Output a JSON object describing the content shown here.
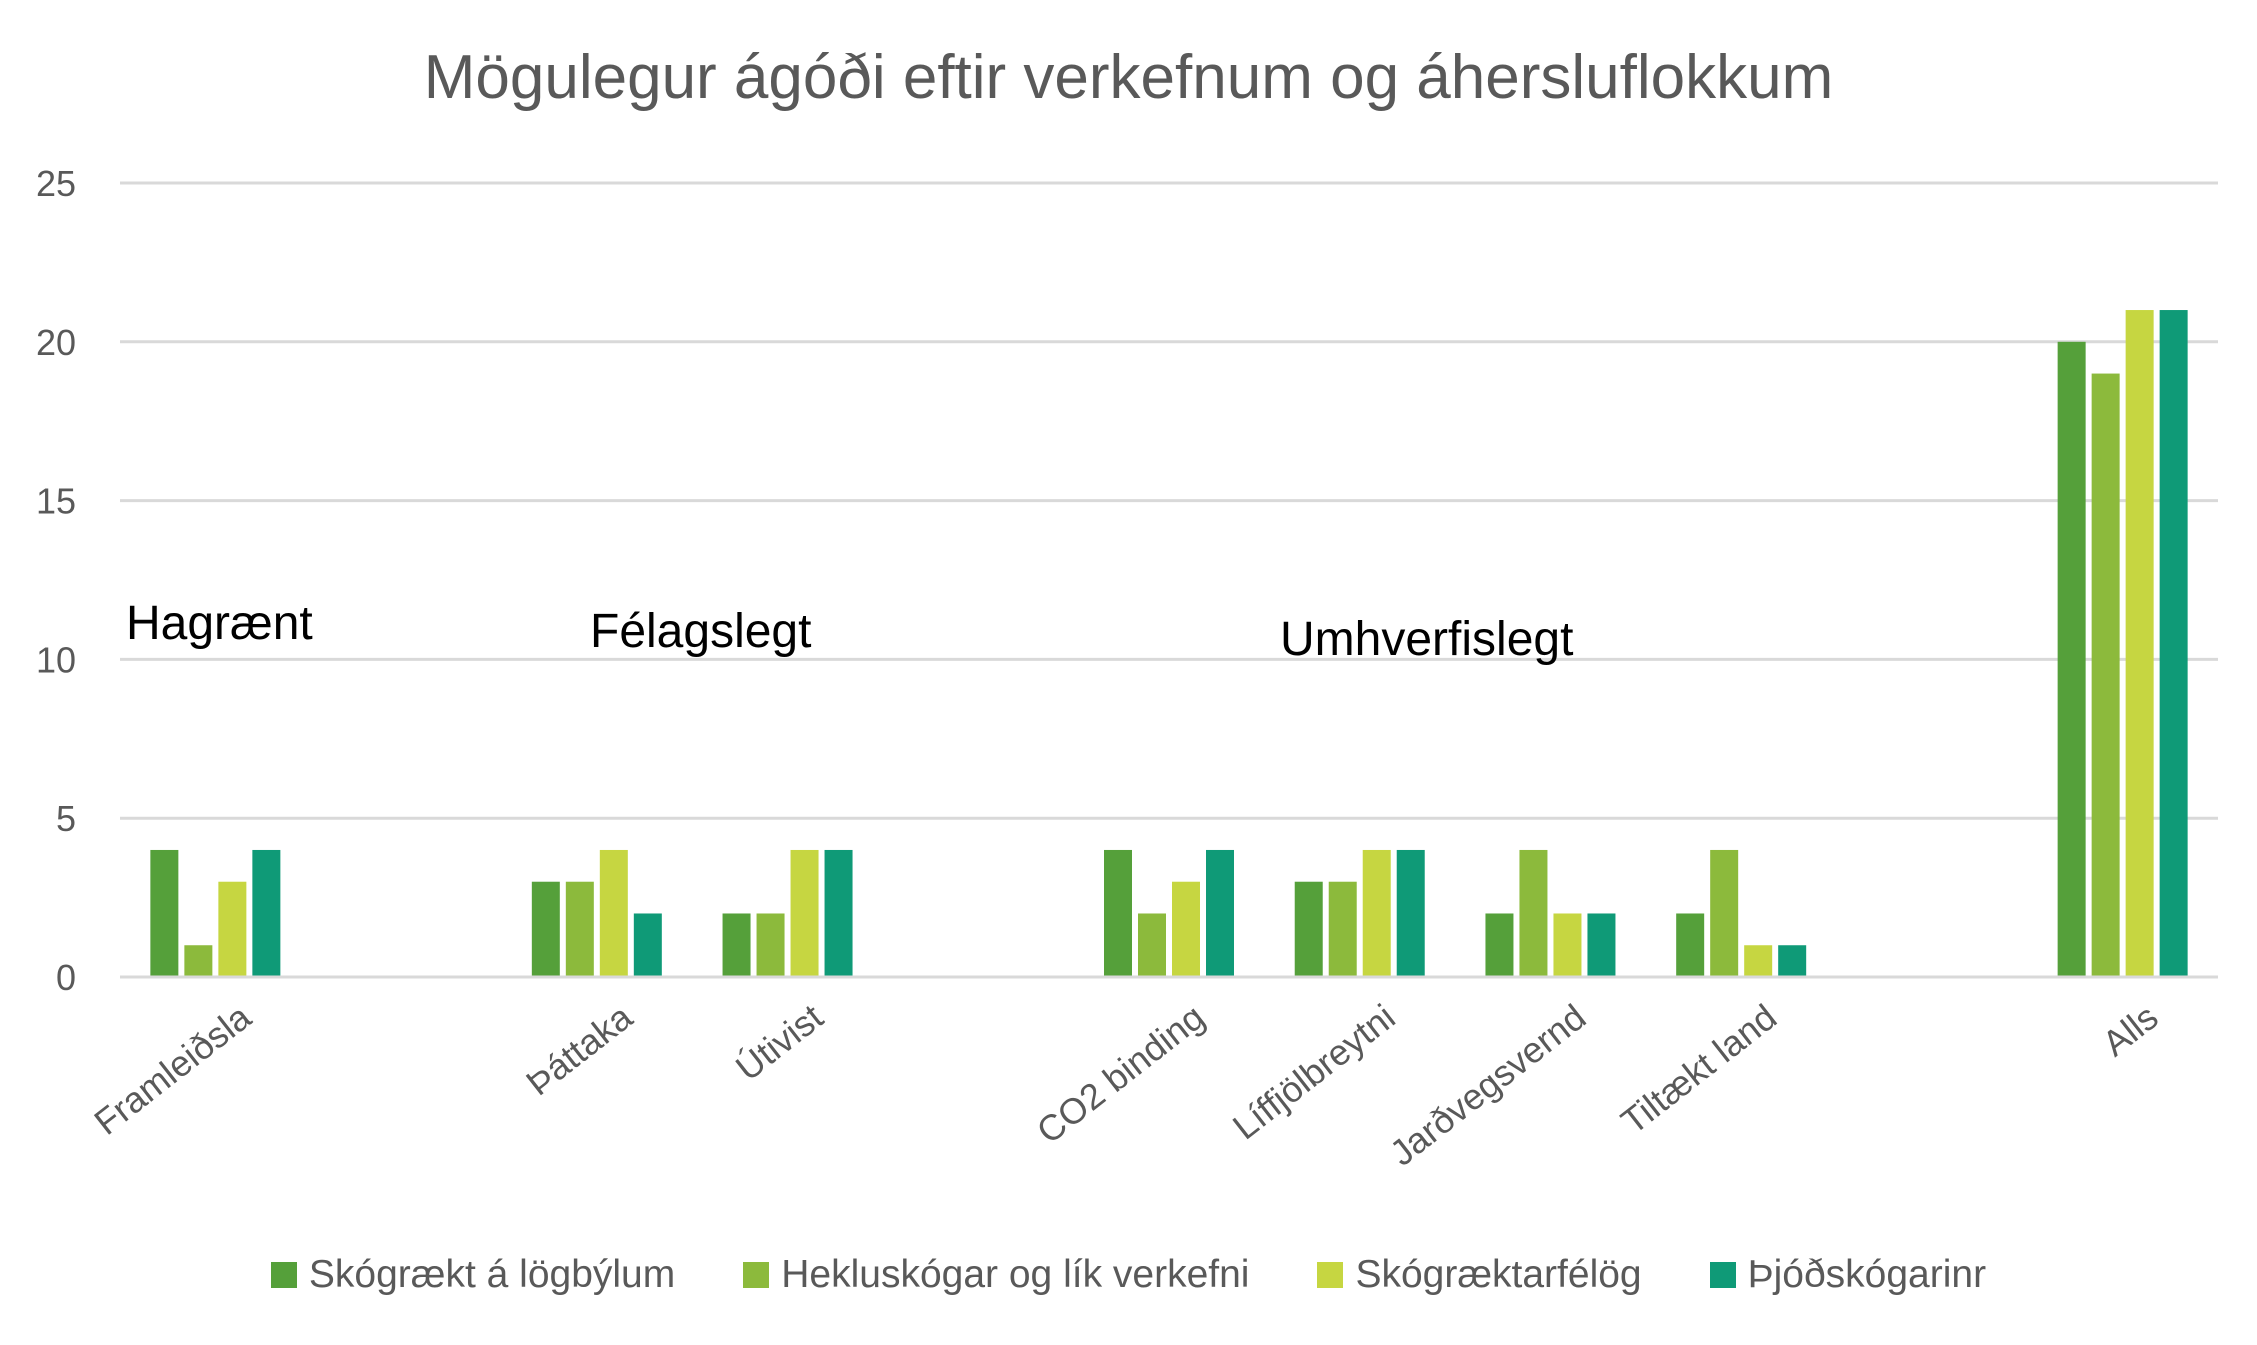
{
  "chart_data": {
    "type": "bar",
    "title": "Mögulegur ágóði eftir verkefnum og áhersluflokkum",
    "xlabel": "",
    "ylabel": "",
    "ylim": [
      0,
      25
    ],
    "yticks": [
      0,
      5,
      10,
      15,
      20,
      25
    ],
    "grid": true,
    "legend_position": "bottom",
    "categories": [
      "Framleiðsla",
      "",
      "Þáttaka",
      "Útivist",
      "",
      "CO2 binding",
      "Líffjölbreytni",
      "Jarðvegsvernd",
      "Tiltækt land",
      "",
      "Alls"
    ],
    "series": [
      {
        "name": "Skógrækt á lögbýlum",
        "color": "#55a03a",
        "values": [
          4,
          null,
          3,
          2,
          null,
          4,
          3,
          2,
          2,
          null,
          20
        ]
      },
      {
        "name": "Hekluskógar og lík verkefni",
        "color": "#8cba3c",
        "values": [
          1,
          null,
          3,
          2,
          null,
          2,
          3,
          4,
          4,
          null,
          19
        ]
      },
      {
        "name": "Skógræktarfélög",
        "color": "#c6d641",
        "values": [
          3,
          null,
          4,
          4,
          null,
          3,
          4,
          2,
          1,
          null,
          21
        ]
      },
      {
        "name": "Þjóðskógarinr",
        "color": "#0f9a77",
        "values": [
          4,
          null,
          2,
          4,
          null,
          4,
          4,
          2,
          1,
          null,
          21
        ]
      }
    ],
    "annotations": [
      "Hagrænt",
      "Félagslegt",
      "Umhverfislegt"
    ]
  }
}
